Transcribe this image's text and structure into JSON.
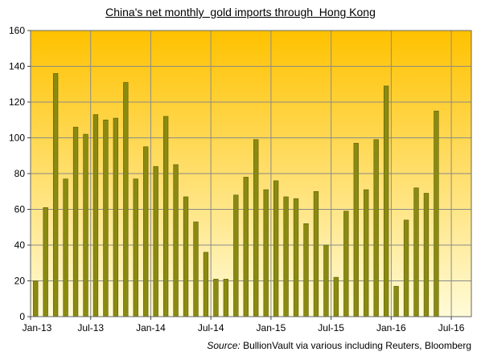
{
  "chart_data": {
    "type": "bar",
    "title": "China's net monthly  gold imports through  Hong Kong",
    "xlabel": "",
    "ylabel": "",
    "ylim": [
      0,
      160
    ],
    "yticks": [
      0,
      20,
      40,
      60,
      80,
      100,
      120,
      140,
      160
    ],
    "x_tick_labels": [
      "Jan-13",
      "Jul-13",
      "Jan-14",
      "Jul-14",
      "Jan-15",
      "Jul-15",
      "Jan-16",
      "Jul-16"
    ],
    "x_range": [
      "Jan-13",
      "Aug-16"
    ],
    "grid": true,
    "categories": [
      "Jan-13",
      "Feb-13",
      "Mar-13",
      "Apr-13",
      "May-13",
      "Jun-13",
      "Jul-13",
      "Aug-13",
      "Sep-13",
      "Oct-13",
      "Nov-13",
      "Dec-13",
      "Jan-14",
      "Feb-14",
      "Mar-14",
      "Apr-14",
      "May-14",
      "Jun-14",
      "Jul-14",
      "Aug-14",
      "Sep-14",
      "Oct-14",
      "Nov-14",
      "Dec-14",
      "Jan-15",
      "Feb-15",
      "Mar-15",
      "Apr-15",
      "May-15",
      "Jun-15",
      "Jul-15",
      "Aug-15",
      "Sep-15",
      "Oct-15",
      "Nov-15",
      "Dec-15",
      "Jan-16",
      "Feb-16",
      "Mar-16",
      "Apr-16",
      "May-16"
    ],
    "values": [
      20,
      61,
      136,
      77,
      106,
      102,
      113,
      110,
      111,
      131,
      77,
      95,
      84,
      112,
      85,
      67,
      53,
      36,
      21,
      21,
      68,
      78,
      99,
      71,
      76,
      67,
      66,
      52,
      70,
      40,
      22,
      59,
      97,
      71,
      99,
      129,
      17,
      54,
      72,
      69,
      115
    ],
    "colors": {
      "bar": "#8a8a12",
      "bar_edge": "#5c5c08",
      "plot_top": "#ffc200",
      "plot_bottom": "#fffbd8",
      "grid": "#8a8a8a"
    }
  },
  "source": {
    "label": "Source:",
    "text": " BullionVault via various including Reuters, Bloomberg"
  }
}
